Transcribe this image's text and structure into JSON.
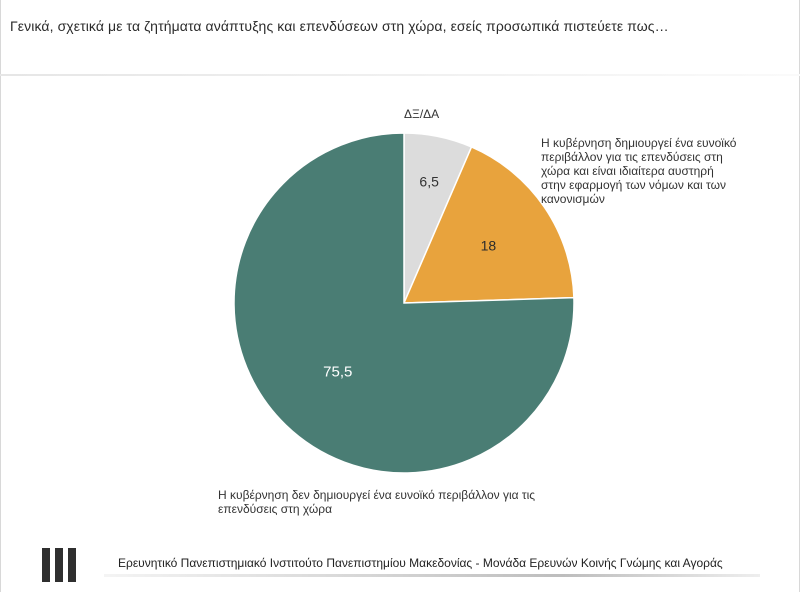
{
  "question": "Γενικά, σχετικά με τα ζητήματα ανάπτυξης και επενδύσεων στη χώρα, εσείς προσωπικά πιστεύετε πως…",
  "chart_data": {
    "type": "pie",
    "start_angle_deg": 0,
    "direction": "clockwise",
    "slices": [
      {
        "label": "ΔΞ/ΔΑ",
        "value": 6.5,
        "value_label": "6,5",
        "color": "#dcdcdc",
        "value_color": "#333333"
      },
      {
        "label": "Η κυβέρνηση δημιουργεί ένα ευνοϊκό περιβάλλον για τις επενδύσεις στη χώρα και είναι ιδιαίτερα αυστηρή στην εφαρμογή των νόμων και των κανονισμών",
        "value": 18,
        "value_label": "18",
        "color": "#e8a33d",
        "value_color": "#2b2b2b"
      },
      {
        "label": "Η κυβέρνηση δεν δημιουργεί ένα ευνοϊκό περιβάλλον για τις επενδύσεις στη χώρα",
        "value": 75.5,
        "value_label": "75,5",
        "color": "#4a7d74",
        "value_color": "#ffffff"
      }
    ]
  },
  "footer": {
    "text": "Ερευνητικό Πανεπιστημιακό Ινστιτούτο Πανεπιστημίου Μακεδονίας - Μονάδα Ερευνών Κοινής Γνώμης και Αγοράς",
    "logo_icon": "bars-logo-icon"
  }
}
